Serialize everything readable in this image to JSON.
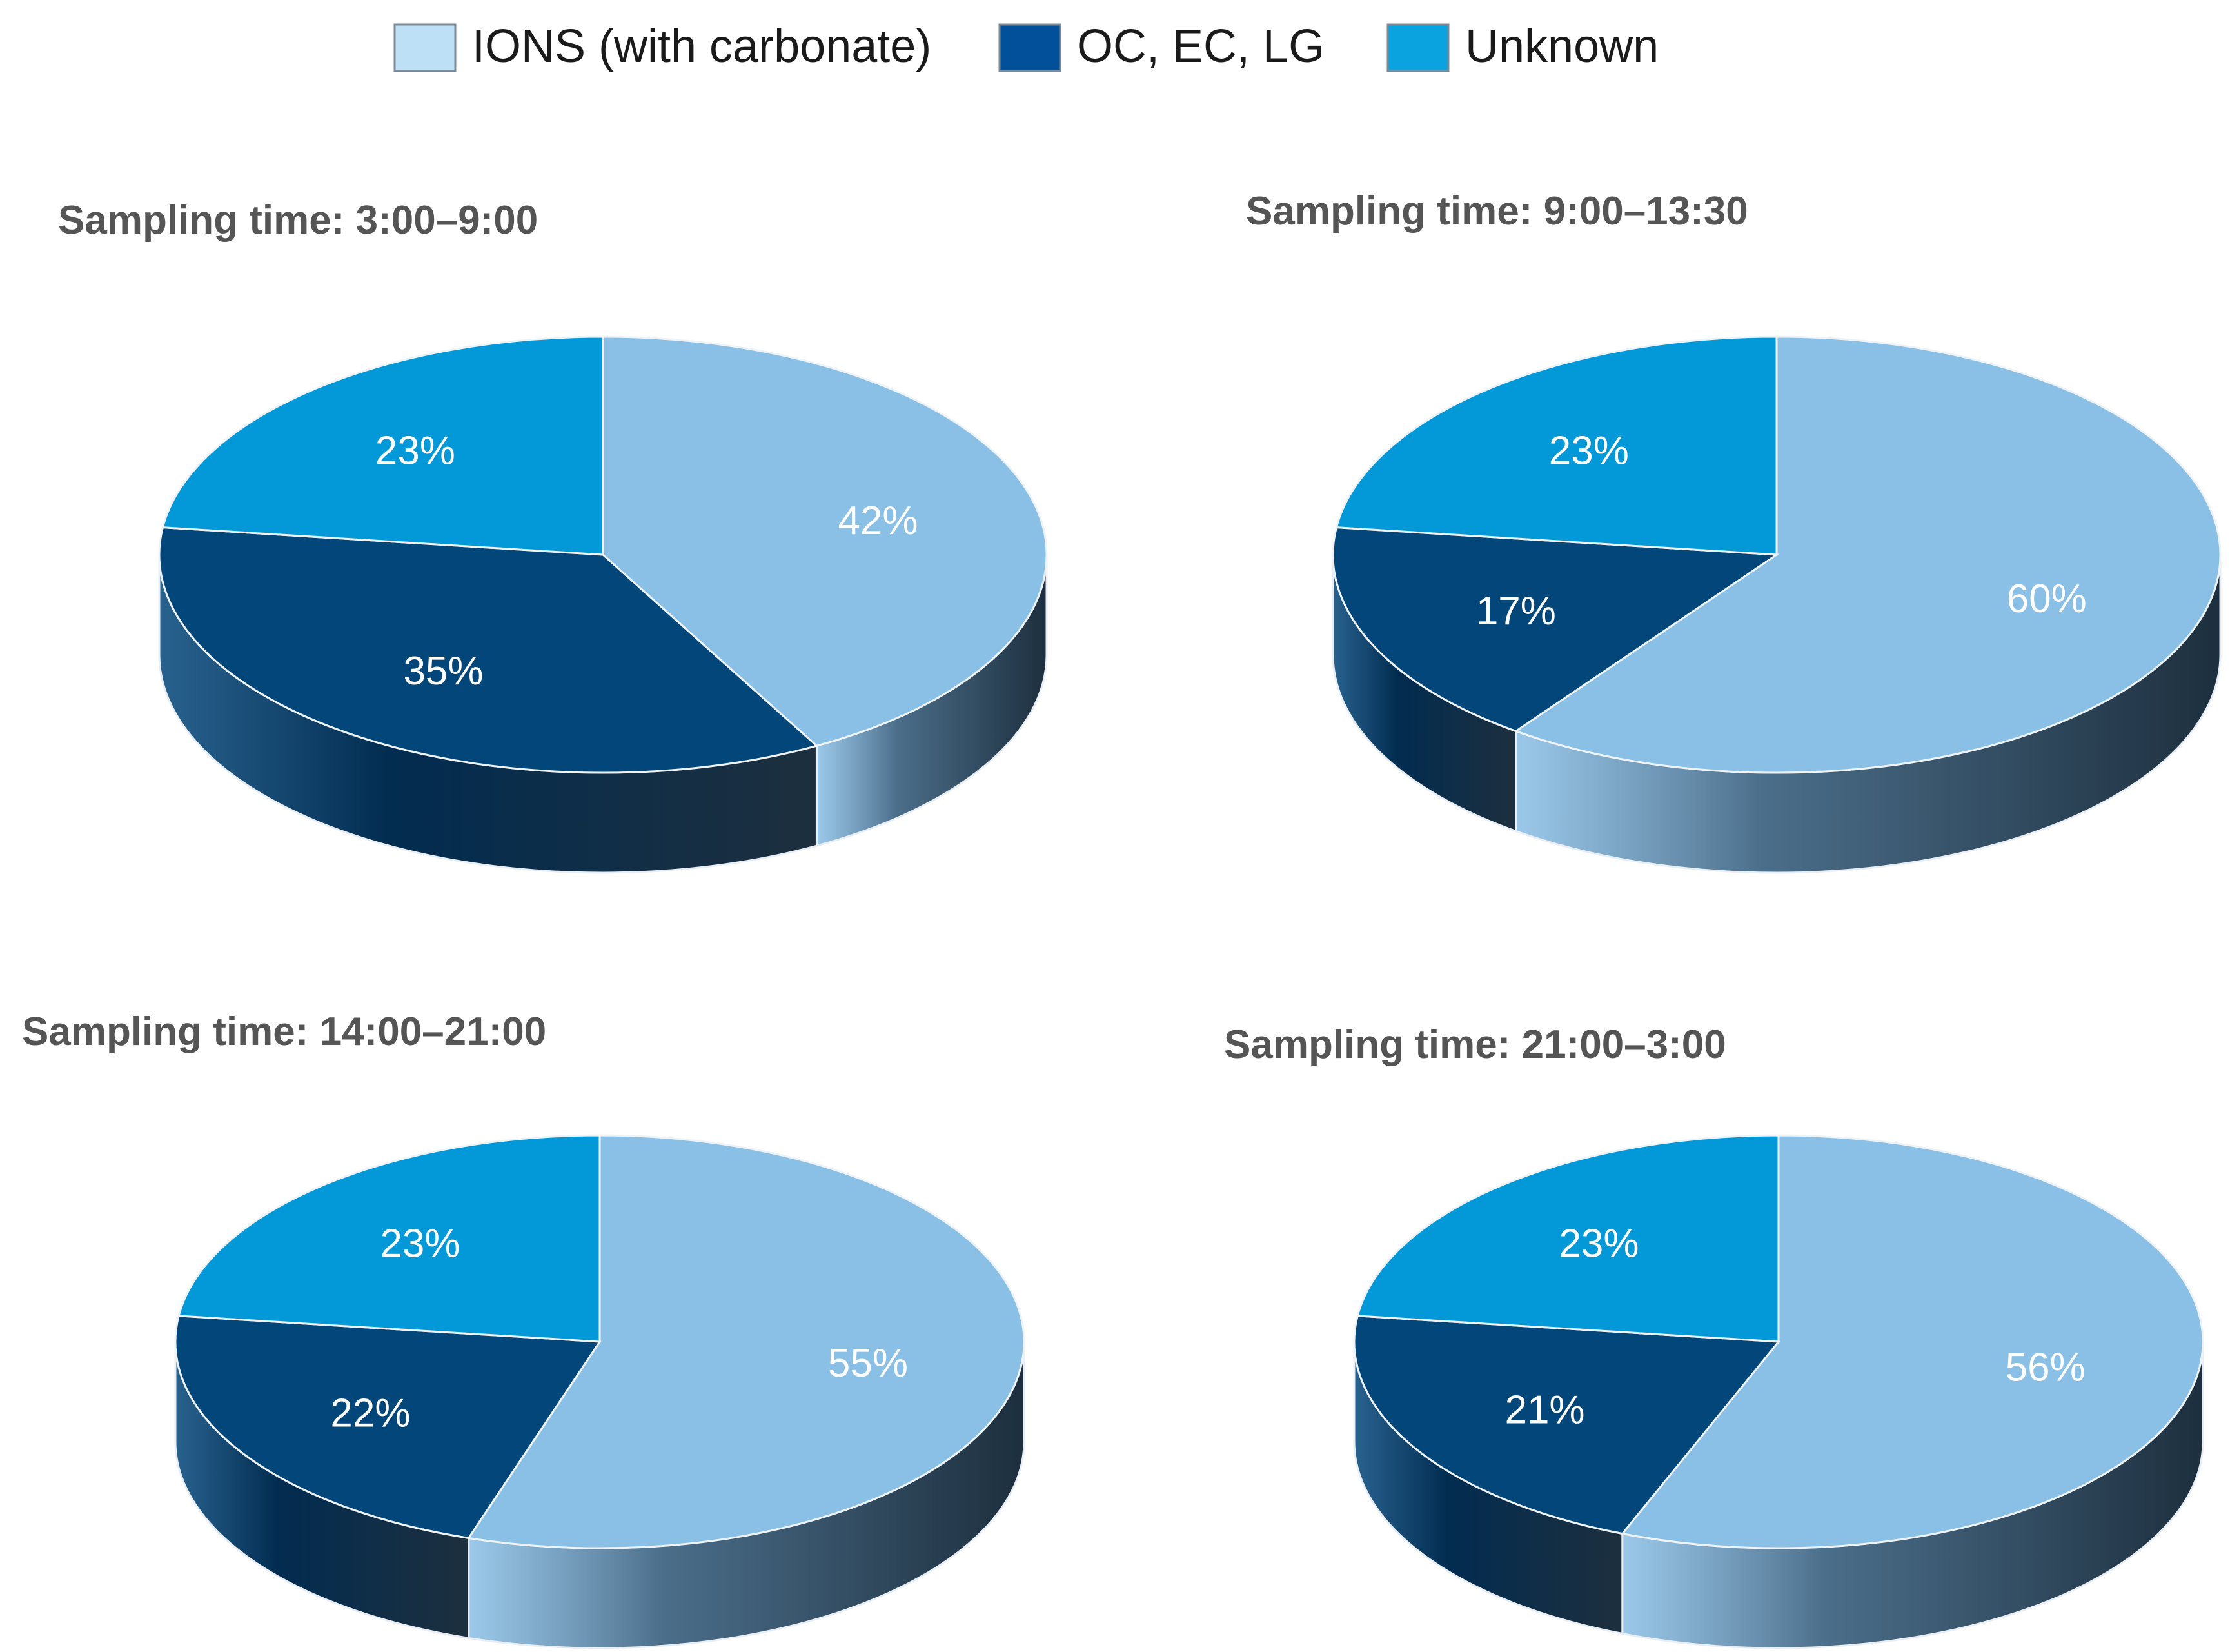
{
  "colors": {
    "ions_top": "#8ABFE6",
    "oc_top": "#03467A",
    "unknown_top": "#0399D9",
    "ions_side": "#4B6E8A",
    "oc_side": "#022C50",
    "unknown_side": "#026594",
    "legend_ions": "#BEE0F7",
    "legend_oc": "#03509A",
    "legend_unknown": "#0AA3E0"
  },
  "legend": [
    {
      "label": "IONS (with carbonate)",
      "color_key": "legend_ions"
    },
    {
      "label": "OC, EC, LG",
      "color_key": "legend_oc"
    },
    {
      "label": "Unknown",
      "color_key": "legend_unknown"
    }
  ],
  "chart_data": [
    {
      "type": "pie",
      "style": "3d",
      "title": "Sampling time: 3:00–9:00",
      "slices": [
        {
          "category": "IONS (with carbonate)",
          "value": 42,
          "label": "42%"
        },
        {
          "category": "OC, EC, LG",
          "value": 35,
          "label": "35%"
        },
        {
          "category": "Unknown",
          "value": 23,
          "label": "23%"
        }
      ]
    },
    {
      "type": "pie",
      "style": "3d",
      "title": "Sampling time: 9:00–13:30",
      "slices": [
        {
          "category": "IONS (with carbonate)",
          "value": 60,
          "label": "60%"
        },
        {
          "category": "OC, EC, LG",
          "value": 17,
          "label": "17%"
        },
        {
          "category": "Unknown",
          "value": 23,
          "label": "23%"
        }
      ]
    },
    {
      "type": "pie",
      "style": "3d",
      "title": "Sampling time: 14:00–21:00",
      "slices": [
        {
          "category": "IONS (with carbonate)",
          "value": 55,
          "label": "55%"
        },
        {
          "category": "OC, EC, LG",
          "value": 22,
          "label": "22%"
        },
        {
          "category": "Unknown",
          "value": 23,
          "label": "23%"
        }
      ]
    },
    {
      "type": "pie",
      "style": "3d",
      "title": "Sampling time: 21:00–3:00",
      "slices": [
        {
          "category": "IONS (with carbonate)",
          "value": 56,
          "label": "56%"
        },
        {
          "category": "OC, EC, LG",
          "value": 21,
          "label": "21%"
        },
        {
          "category": "Unknown",
          "value": 23,
          "label": "23%"
        }
      ]
    }
  ]
}
